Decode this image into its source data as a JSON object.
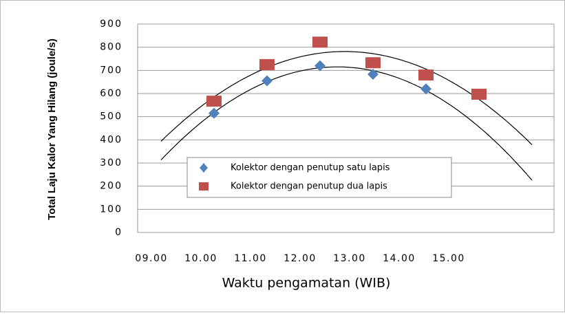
{
  "chart_data": {
    "type": "scatter",
    "x_label": "Waktu pengamatan (WIB)",
    "y_label": "Total Laju Kalor Yang Hilang (joule/s)",
    "categories": [
      "09.00",
      "10.00",
      "11.00",
      "12.00",
      "13.00",
      "14.00",
      "15.00"
    ],
    "series": [
      {
        "name": "Kolektor dengan penutup satu lapis",
        "color": "#4f81bd",
        "marker": "diamond",
        "values": [
          null,
          515,
          655,
          720,
          683,
          620,
          null
        ]
      },
      {
        "name": "Kolektor dengan penutup dua lapis",
        "color": "#c0504d",
        "marker": "square",
        "values": [
          null,
          567,
          725,
          822,
          733,
          680,
          597
        ]
      }
    ],
    "trendline": "polynomial",
    "ylim": [
      0,
      900
    ],
    "yticks": [
      0,
      100,
      200,
      300,
      400,
      500,
      600,
      700,
      800,
      900
    ],
    "grid": true
  }
}
